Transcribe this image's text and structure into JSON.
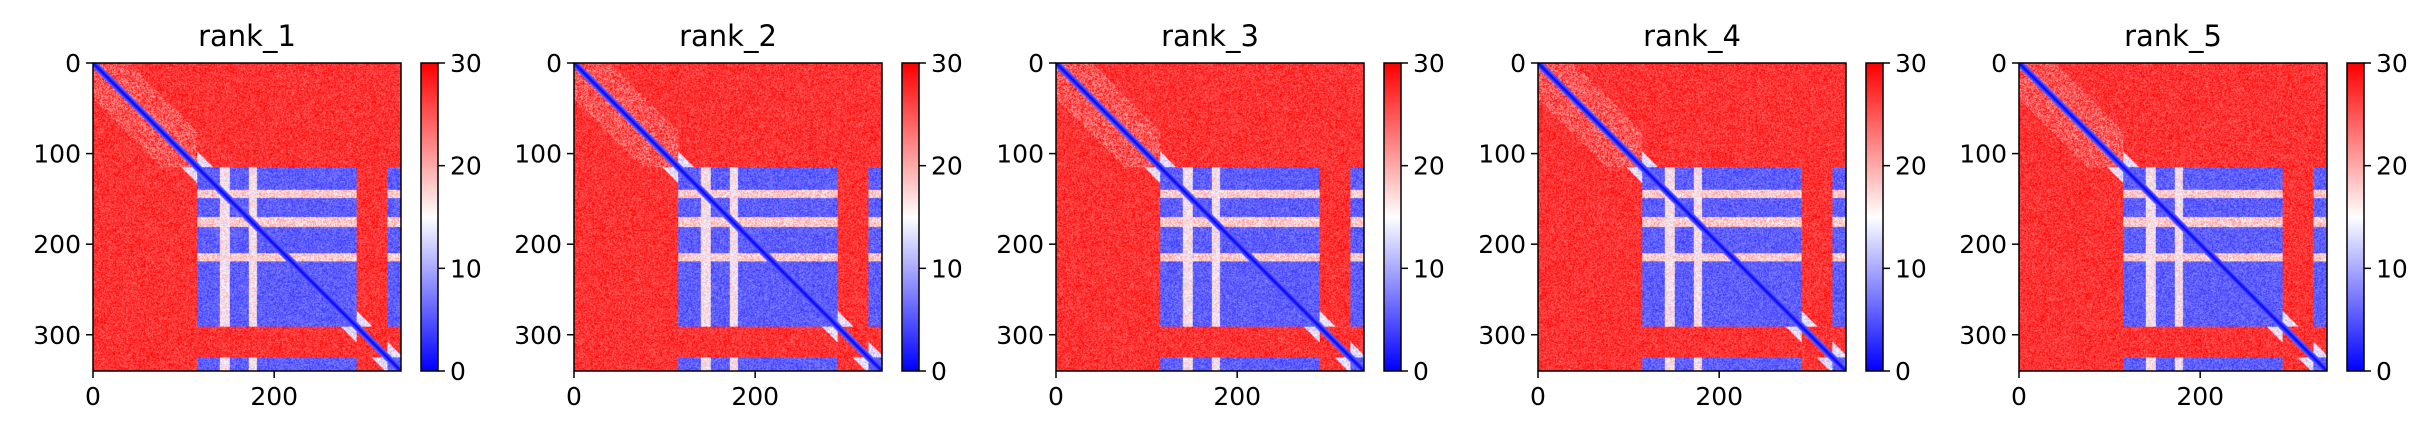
{
  "colors": {
    "low": "#0000ff",
    "mid": "#ffffff",
    "high": "#ff0000",
    "axis": "#000000",
    "background": "#ffffff"
  },
  "chart_data": [
    {
      "type": "heatmap",
      "title": "rank_1",
      "x_ticks": [
        0,
        200
      ],
      "y_ticks": [
        0,
        100,
        200,
        300
      ],
      "xlim": [
        0,
        340
      ],
      "ylim": [
        340,
        0
      ],
      "colorbar": {
        "ticks": [
          0,
          10,
          20,
          30
        ],
        "range": [
          0,
          30
        ],
        "colormap": "bwr"
      },
      "matrix_size": 340,
      "blocks": [
        [
          115,
          290
        ],
        [
          325,
          340
        ]
      ],
      "high_value": 30,
      "variant": 1
    },
    {
      "type": "heatmap",
      "title": "rank_2",
      "x_ticks": [
        0,
        200
      ],
      "y_ticks": [
        0,
        100,
        200,
        300
      ],
      "xlim": [
        0,
        340
      ],
      "ylim": [
        340,
        0
      ],
      "colorbar": {
        "ticks": [
          0,
          10,
          20,
          30
        ],
        "range": [
          0,
          30
        ],
        "colormap": "bwr"
      },
      "matrix_size": 340,
      "blocks": [
        [
          115,
          290
        ],
        [
          325,
          340
        ]
      ],
      "high_value": 30,
      "variant": 2
    },
    {
      "type": "heatmap",
      "title": "rank_3",
      "x_ticks": [
        0,
        200
      ],
      "y_ticks": [
        0,
        100,
        200,
        300
      ],
      "xlim": [
        0,
        340
      ],
      "ylim": [
        340,
        0
      ],
      "colorbar": {
        "ticks": [
          0,
          10,
          20,
          30
        ],
        "range": [
          0,
          30
        ],
        "colormap": "bwr"
      },
      "matrix_size": 340,
      "blocks": [
        [
          115,
          290
        ],
        [
          325,
          340
        ]
      ],
      "high_value": 30,
      "variant": 3
    },
    {
      "type": "heatmap",
      "title": "rank_4",
      "x_ticks": [
        0,
        200
      ],
      "y_ticks": [
        0,
        100,
        200,
        300
      ],
      "xlim": [
        0,
        340
      ],
      "ylim": [
        340,
        0
      ],
      "colorbar": {
        "ticks": [
          0,
          10,
          20,
          30
        ],
        "range": [
          0,
          30
        ],
        "colormap": "bwr"
      },
      "matrix_size": 340,
      "blocks": [
        [
          115,
          290
        ],
        [
          325,
          340
        ]
      ],
      "high_value": 30,
      "variant": 4
    },
    {
      "type": "heatmap",
      "title": "rank_5",
      "x_ticks": [
        0,
        200
      ],
      "y_ticks": [
        0,
        100,
        200,
        300
      ],
      "xlim": [
        0,
        340
      ],
      "ylim": [
        340,
        0
      ],
      "colorbar": {
        "ticks": [
          0,
          10,
          20,
          30
        ],
        "range": [
          0,
          30
        ],
        "colormap": "bwr"
      },
      "matrix_size": 340,
      "blocks": [
        [
          115,
          290
        ],
        [
          325,
          340
        ]
      ],
      "high_value": 30,
      "variant": 5
    }
  ]
}
